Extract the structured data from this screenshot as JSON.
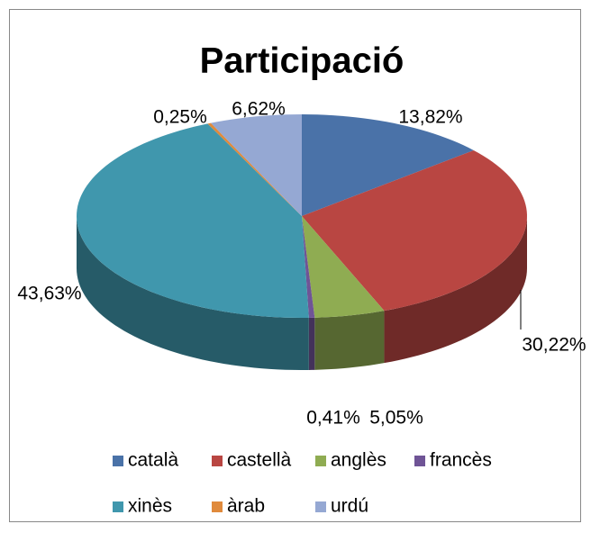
{
  "chart_data": {
    "type": "pie",
    "title": "Participació",
    "categories": [
      "català",
      "castellà",
      "anglès",
      "francès",
      "xinès",
      "àrab",
      "urdú"
    ],
    "values": [
      13.82,
      30.22,
      5.05,
      0.41,
      43.63,
      0.25,
      6.62
    ],
    "value_labels": [
      "13,82%",
      "30,22%",
      "5,05%",
      "0,41%",
      "43,63%",
      "0,25%",
      "6,62%"
    ],
    "colors": [
      "#4a72a8",
      "#b94642",
      "#8fac52",
      "#6f5496",
      "#4097ad",
      "#e08a3c",
      "#95a8d3"
    ],
    "legend": "bottom"
  }
}
